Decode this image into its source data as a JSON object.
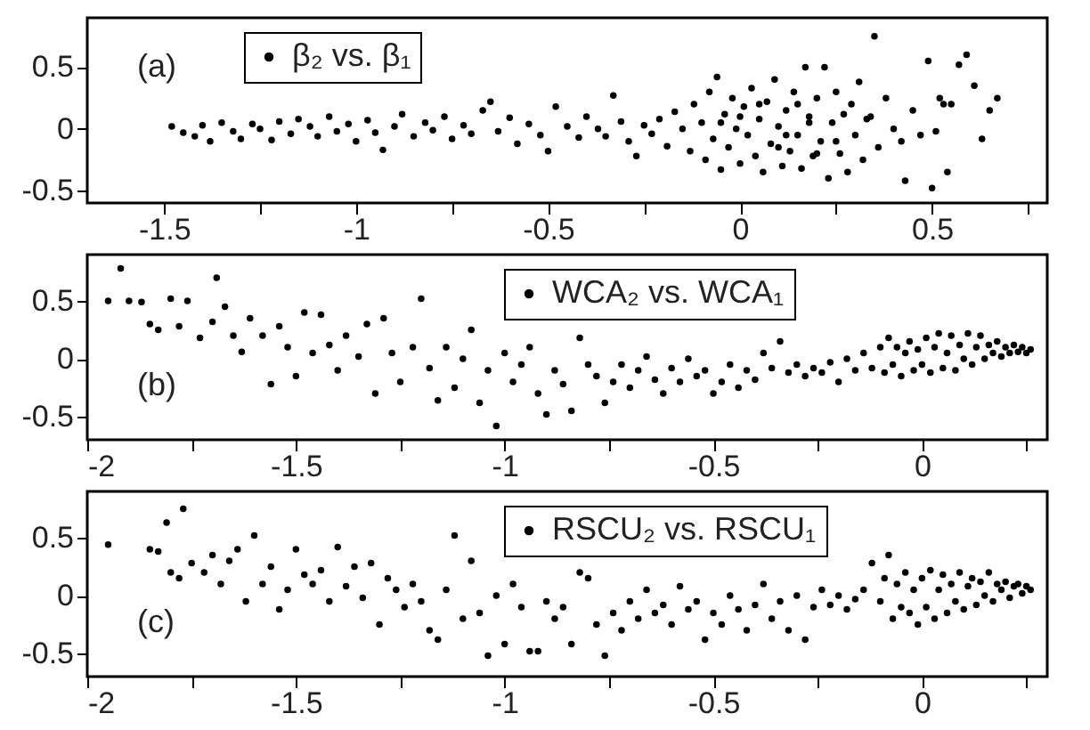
{
  "chart_data": [
    {
      "type": "scatter",
      "annotations": [
        "(a)"
      ],
      "legend": "top left",
      "marker": "circle",
      "grid": false,
      "xlim": [
        -1.7,
        0.8
      ],
      "ylim": [
        -0.6,
        0.9
      ],
      "xticks": [
        -1.5,
        {
          "value": -1.25,
          "label": null
        },
        -1,
        {
          "value": -0.75,
          "label": null
        },
        -0.5,
        {
          "value": -0.25,
          "label": null
        },
        0,
        {
          "value": 0.25,
          "label": null
        },
        0.5,
        {
          "value": 0.75,
          "label": null
        }
      ],
      "yticks": [
        -0.5,
        0,
        0.5
      ],
      "series": [
        {
          "name": "β₂ vs. β₁",
          "color": "#000000",
          "x": [
            -1.48,
            -1.45,
            -1.42,
            -1.4,
            -1.38,
            -1.35,
            -1.32,
            -1.3,
            -1.27,
            -1.25,
            -1.22,
            -1.2,
            -1.17,
            -1.15,
            -1.12,
            -1.1,
            -1.07,
            -1.05,
            -1.02,
            -1.0,
            -0.97,
            -0.95,
            -0.93,
            -0.9,
            -0.88,
            -0.85,
            -0.82,
            -0.8,
            -0.77,
            -0.75,
            -0.72,
            -0.7,
            -0.67,
            -0.65,
            -0.63,
            -0.6,
            -0.58,
            -0.55,
            -0.52,
            -0.5,
            -0.48,
            -0.45,
            -0.42,
            -0.4,
            -0.37,
            -0.35,
            -0.33,
            -0.31,
            -0.29,
            -0.27,
            -0.25,
            -0.23,
            -0.21,
            -0.19,
            -0.17,
            -0.15,
            -0.13,
            -0.12,
            -0.1,
            -0.09,
            -0.08,
            -0.07,
            -0.06,
            -0.05,
            -0.04,
            -0.03,
            -0.02,
            -0.01,
            0.0,
            0.01,
            0.02,
            0.03,
            0.04,
            0.05,
            0.06,
            0.07,
            0.08,
            0.09,
            0.1,
            0.11,
            0.12,
            0.13,
            0.14,
            0.15,
            0.16,
            0.17,
            0.18,
            0.19,
            0.2,
            0.21,
            0.22,
            0.23,
            0.24,
            0.25,
            0.26,
            0.27,
            0.28,
            0.29,
            0.3,
            0.31,
            0.32,
            0.33,
            0.35,
            0.36,
            0.38,
            0.4,
            0.42,
            0.43,
            0.45,
            0.47,
            0.49,
            0.5,
            0.51,
            0.52,
            0.53,
            0.54,
            0.55,
            0.57,
            0.59,
            0.61,
            0.63,
            0.65,
            0.67,
            0.34,
            0.05,
            0.15,
            0.1,
            0.0,
            0.2,
            0.25,
            -0.05,
            0.12,
            0.18
          ],
          "values": [
            0.02,
            -0.03,
            -0.06,
            0.03,
            -0.1,
            0.05,
            -0.02,
            -0.08,
            0.04,
            0.0,
            -0.09,
            0.06,
            -0.04,
            0.08,
            0.02,
            -0.06,
            0.1,
            -0.02,
            0.04,
            -0.1,
            0.07,
            -0.03,
            -0.17,
            0.02,
            0.12,
            -0.06,
            0.05,
            -0.01,
            0.1,
            -0.08,
            0.03,
            -0.04,
            0.15,
            0.22,
            -0.02,
            0.09,
            -0.12,
            0.04,
            -0.05,
            -0.18,
            0.18,
            0.02,
            -0.07,
            0.1,
            0.0,
            -0.06,
            0.27,
            0.06,
            -0.1,
            -0.22,
            0.03,
            -0.04,
            0.08,
            -0.14,
            0.14,
            0.0,
            -0.18,
            0.2,
            0.05,
            -0.25,
            0.3,
            -0.08,
            0.42,
            -0.33,
            0.12,
            -0.15,
            0.25,
            0.0,
            -0.28,
            0.18,
            -0.05,
            0.33,
            -0.22,
            0.08,
            -0.35,
            0.22,
            -0.12,
            0.4,
            0.02,
            -0.3,
            0.15,
            -0.18,
            0.3,
            -0.05,
            -0.32,
            0.5,
            0.1,
            -0.22,
            0.25,
            -0.1,
            0.5,
            -0.4,
            0.05,
            0.3,
            -0.2,
            0.12,
            -0.35,
            0.2,
            -0.05,
            0.38,
            -0.25,
            0.08,
            0.75,
            -0.15,
            0.25,
            0.0,
            -0.1,
            -0.42,
            0.15,
            -0.05,
            0.55,
            -0.48,
            -0.02,
            0.25,
            0.2,
            -0.35,
            0.2,
            0.52,
            0.6,
            0.35,
            -0.08,
            0.15,
            0.25,
            0.1,
            0.2,
            0.2,
            -0.15,
            0.1,
            -0.2,
            -0.1,
            0.05,
            -0.05,
            0.05
          ]
        }
      ]
    },
    {
      "type": "scatter",
      "annotations": [
        "(b)"
      ],
      "legend": "top right",
      "marker": "circle",
      "grid": false,
      "xlim": [
        -2,
        0.3
      ],
      "ylim": [
        -0.7,
        0.9
      ],
      "xticks": [
        -2,
        {
          "value": -1.75,
          "label": null
        },
        -1.5,
        {
          "value": -1.25,
          "label": null
        },
        -1,
        {
          "value": -0.75,
          "label": null
        },
        -0.5,
        {
          "value": -0.25,
          "label": null
        },
        0,
        {
          "value": 0.25,
          "label": null
        }
      ],
      "yticks": [
        -0.5,
        0,
        0.5
      ],
      "series": [
        {
          "name": "WCA₂ vs. WCA₁",
          "color": "#000000",
          "x": [
            -1.95,
            -1.92,
            -1.9,
            -1.87,
            -1.85,
            -1.83,
            -1.8,
            -1.78,
            -1.76,
            -1.73,
            -1.7,
            -1.69,
            -1.67,
            -1.65,
            -1.63,
            -1.61,
            -1.58,
            -1.56,
            -1.54,
            -1.52,
            -1.5,
            -1.48,
            -1.46,
            -1.44,
            -1.42,
            -1.4,
            -1.38,
            -1.35,
            -1.33,
            -1.31,
            -1.29,
            -1.27,
            -1.25,
            -1.22,
            -1.2,
            -1.18,
            -1.16,
            -1.14,
            -1.12,
            -1.1,
            -1.08,
            -1.06,
            -1.04,
            -1.02,
            -1.0,
            -0.98,
            -0.96,
            -0.94,
            -0.92,
            -0.9,
            -0.88,
            -0.86,
            -0.84,
            -0.82,
            -0.8,
            -0.78,
            -0.76,
            -0.74,
            -0.72,
            -0.7,
            -0.68,
            -0.66,
            -0.64,
            -0.62,
            -0.6,
            -0.58,
            -0.56,
            -0.54,
            -0.52,
            -0.5,
            -0.48,
            -0.46,
            -0.44,
            -0.42,
            -0.4,
            -0.38,
            -0.36,
            -0.34,
            -0.32,
            -0.3,
            -0.28,
            -0.26,
            -0.24,
            -0.22,
            -0.2,
            -0.18,
            -0.16,
            -0.14,
            -0.12,
            -0.1,
            -0.09,
            -0.08,
            -0.07,
            -0.06,
            -0.05,
            -0.04,
            -0.03,
            -0.02,
            -0.01,
            0.0,
            0.01,
            0.02,
            0.03,
            0.04,
            0.05,
            0.06,
            0.07,
            0.08,
            0.09,
            0.1,
            0.11,
            0.12,
            0.13,
            0.14,
            0.15,
            0.16,
            0.17,
            0.18,
            0.19,
            0.2,
            0.21,
            0.22,
            0.23,
            0.24,
            0.25,
            0.26
          ],
          "values": [
            0.5,
            0.78,
            0.5,
            0.49,
            0.3,
            0.25,
            0.52,
            0.28,
            0.5,
            0.18,
            0.32,
            0.7,
            0.45,
            0.2,
            0.06,
            0.35,
            0.2,
            -0.22,
            0.28,
            0.1,
            -0.15,
            0.4,
            0.05,
            0.38,
            0.12,
            -0.1,
            0.2,
            0.02,
            0.3,
            -0.3,
            0.35,
            0.05,
            -0.2,
            0.1,
            0.52,
            -0.08,
            -0.36,
            0.1,
            -0.25,
            0.0,
            0.25,
            -0.38,
            -0.1,
            -0.58,
            0.05,
            -0.2,
            -0.05,
            0.1,
            -0.3,
            -0.48,
            -0.1,
            -0.22,
            -0.45,
            0.18,
            -0.05,
            -0.15,
            -0.38,
            -0.2,
            -0.05,
            -0.25,
            -0.1,
            0.02,
            -0.18,
            -0.3,
            -0.08,
            -0.2,
            0.0,
            -0.15,
            -0.1,
            -0.3,
            -0.2,
            -0.05,
            -0.25,
            -0.1,
            -0.18,
            0.05,
            -0.08,
            0.15,
            -0.12,
            -0.05,
            -0.15,
            -0.08,
            -0.12,
            -0.03,
            -0.2,
            0.0,
            -0.1,
            0.05,
            -0.08,
            0.1,
            -0.12,
            0.18,
            -0.05,
            0.1,
            -0.15,
            0.05,
            0.15,
            -0.1,
            0.08,
            -0.05,
            0.18,
            -0.12,
            0.1,
            0.22,
            -0.08,
            0.05,
            0.2,
            -0.1,
            0.12,
            0.0,
            0.22,
            -0.05,
            0.1,
            0.2,
            0.0,
            0.12,
            0.05,
            0.15,
            0.02,
            0.1,
            0.05,
            0.12,
            0.06,
            0.1,
            0.05,
            0.08
          ]
        }
      ]
    },
    {
      "type": "scatter",
      "annotations": [
        "(c)"
      ],
      "legend": "top right",
      "marker": "circle",
      "grid": false,
      "xlim": [
        -2,
        0.3
      ],
      "ylim": [
        -0.7,
        0.9
      ],
      "xticks": [
        -2,
        {
          "value": -1.75,
          "label": null
        },
        -1.5,
        {
          "value": -1.25,
          "label": null
        },
        -1,
        {
          "value": -0.75,
          "label": null
        },
        -0.5,
        {
          "value": -0.25,
          "label": null
        },
        0,
        {
          "value": 0.25,
          "label": null
        }
      ],
      "yticks": [
        -0.5,
        0,
        0.5
      ],
      "series": [
        {
          "name": "RSCU₂ vs. RSCU₁",
          "color": "#000000",
          "x": [
            -1.95,
            -1.85,
            -1.83,
            -1.81,
            -1.8,
            -1.78,
            -1.77,
            -1.75,
            -1.72,
            -1.7,
            -1.68,
            -1.66,
            -1.64,
            -1.62,
            -1.6,
            -1.58,
            -1.56,
            -1.54,
            -1.52,
            -1.5,
            -1.48,
            -1.46,
            -1.44,
            -1.42,
            -1.4,
            -1.38,
            -1.36,
            -1.34,
            -1.32,
            -1.3,
            -1.28,
            -1.26,
            -1.24,
            -1.22,
            -1.2,
            -1.18,
            -1.16,
            -1.14,
            -1.12,
            -1.1,
            -1.08,
            -1.06,
            -1.04,
            -1.02,
            -1.0,
            -0.98,
            -0.96,
            -0.94,
            -0.92,
            -0.9,
            -0.88,
            -0.86,
            -0.84,
            -0.82,
            -0.8,
            -0.78,
            -0.76,
            -0.74,
            -0.72,
            -0.7,
            -0.68,
            -0.66,
            -0.64,
            -0.62,
            -0.6,
            -0.58,
            -0.56,
            -0.54,
            -0.52,
            -0.5,
            -0.48,
            -0.46,
            -0.44,
            -0.42,
            -0.4,
            -0.38,
            -0.36,
            -0.34,
            -0.32,
            -0.3,
            -0.28,
            -0.26,
            -0.24,
            -0.22,
            -0.2,
            -0.18,
            -0.16,
            -0.14,
            -0.12,
            -0.1,
            -0.09,
            -0.08,
            -0.07,
            -0.06,
            -0.05,
            -0.04,
            -0.03,
            -0.02,
            -0.01,
            0.0,
            0.01,
            0.02,
            0.03,
            0.04,
            0.05,
            0.06,
            0.07,
            0.08,
            0.09,
            0.1,
            0.11,
            0.12,
            0.13,
            0.14,
            0.15,
            0.16,
            0.17,
            0.18,
            0.19,
            0.2,
            0.21,
            0.22,
            0.23,
            0.24,
            0.25,
            0.26
          ],
          "values": [
            0.44,
            0.4,
            0.38,
            0.63,
            0.2,
            0.15,
            0.75,
            0.28,
            0.2,
            0.35,
            0.1,
            0.3,
            0.4,
            -0.05,
            0.52,
            0.1,
            0.25,
            -0.12,
            0.05,
            0.4,
            0.18,
            0.1,
            0.22,
            -0.05,
            0.42,
            0.08,
            0.25,
            -0.02,
            0.28,
            -0.25,
            0.15,
            0.05,
            -0.1,
            0.1,
            -0.05,
            -0.3,
            -0.38,
            0.05,
            0.52,
            -0.2,
            0.3,
            -0.15,
            -0.52,
            0.0,
            -0.42,
            0.1,
            -0.1,
            -0.48,
            -0.48,
            -0.05,
            -0.2,
            -0.1,
            -0.42,
            0.2,
            0.15,
            -0.25,
            -0.52,
            -0.15,
            -0.3,
            -0.05,
            -0.2,
            0.05,
            -0.15,
            -0.08,
            -0.25,
            0.08,
            -0.12,
            -0.05,
            -0.38,
            -0.15,
            -0.25,
            0.0,
            -0.12,
            -0.3,
            -0.08,
            0.1,
            -0.2,
            -0.05,
            -0.3,
            0.0,
            -0.38,
            -0.1,
            0.05,
            -0.08,
            0.0,
            -0.12,
            -0.03,
            0.05,
            0.28,
            -0.05,
            0.15,
            0.35,
            -0.2,
            0.1,
            -0.1,
            0.2,
            -0.15,
            0.05,
            -0.25,
            0.15,
            -0.1,
            0.22,
            -0.2,
            0.05,
            0.18,
            -0.15,
            0.1,
            -0.05,
            0.2,
            -0.12,
            0.08,
            0.15,
            -0.08,
            0.12,
            0.0,
            0.2,
            -0.05,
            0.1,
            0.05,
            0.12,
            -0.02,
            0.08,
            0.1,
            0.02,
            0.08,
            0.05
          ]
        }
      ]
    }
  ]
}
